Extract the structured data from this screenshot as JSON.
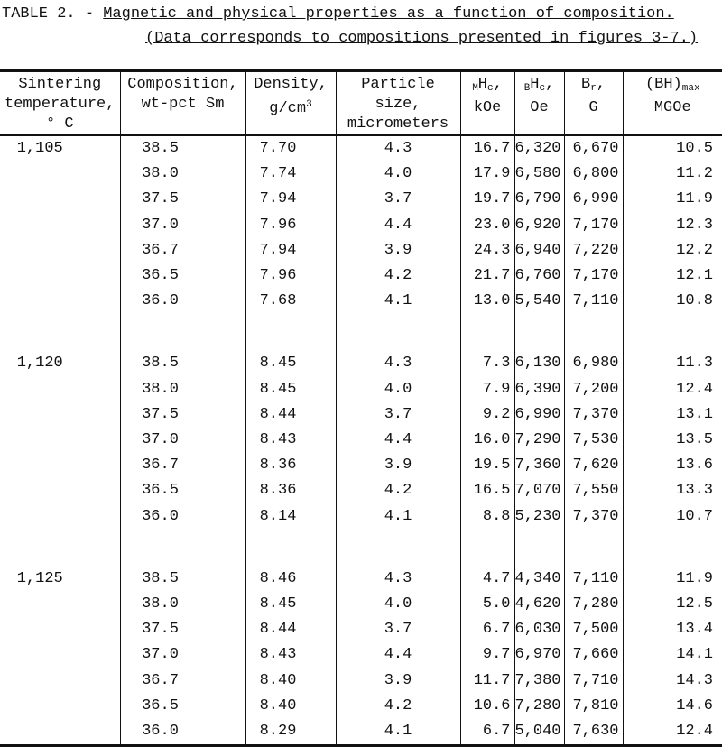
{
  "caption": {
    "label": "TABLE 2. -",
    "title": "Magnetic and physical properties as a function of composition.",
    "note": "(Data corresponds to compositions presented in figures 3-7.)"
  },
  "table": {
    "headers": [
      [
        [
          "Sintering"
        ],
        [
          "temperature,"
        ],
        [
          "° C"
        ]
      ],
      [
        [
          "Composition,"
        ],
        [
          "wt-pct Sm"
        ]
      ],
      [
        [
          "Density,"
        ],
        [
          "g/cm",
          {
            "t": "3",
            "s": "sup"
          }
        ]
      ],
      [
        [
          "Particle"
        ],
        [
          "size,"
        ],
        [
          "micrometers"
        ]
      ],
      [
        [
          {
            "t": "M",
            "s": "sub"
          },
          "H",
          {
            "t": "c",
            "s": "sub"
          },
          ","
        ],
        [
          "kOe"
        ]
      ],
      [
        [
          {
            "t": "B",
            "s": "sub"
          },
          "H",
          {
            "t": "c",
            "s": "sub"
          },
          ","
        ],
        [
          "Oe"
        ]
      ],
      [
        [
          "B",
          {
            "t": "r",
            "s": "sub"
          },
          ","
        ],
        [
          "G"
        ]
      ],
      [
        [
          "(BH)",
          {
            "t": "max",
            "s": "sub"
          }
        ],
        [
          "MGOe"
        ]
      ]
    ],
    "groups": [
      {
        "temperature": "1,105",
        "rows": [
          [
            "38.5",
            "7.70",
            "4.3",
            "16.7",
            "6,320",
            "6,670",
            "10.5"
          ],
          [
            "38.0",
            "7.74",
            "4.0",
            "17.9",
            "6,580",
            "6,800",
            "11.2"
          ],
          [
            "37.5",
            "7.94",
            "3.7",
            "19.7",
            "6,790",
            "6,990",
            "11.9"
          ],
          [
            "37.0",
            "7.96",
            "4.4",
            "23.0",
            "6,920",
            "7,170",
            "12.3"
          ],
          [
            "36.7",
            "7.94",
            "3.9",
            "24.3",
            "6,940",
            "7,220",
            "12.2"
          ],
          [
            "36.5",
            "7.96",
            "4.2",
            "21.7",
            "6,760",
            "7,170",
            "12.1"
          ],
          [
            "36.0",
            "7.68",
            "4.1",
            "13.0",
            "5,540",
            "7,110",
            "10.8"
          ]
        ]
      },
      {
        "temperature": "1,120",
        "rows": [
          [
            "38.5",
            "8.45",
            "4.3",
            "7.3",
            "6,130",
            "6,980",
            "11.3"
          ],
          [
            "38.0",
            "8.45",
            "4.0",
            "7.9",
            "6,390",
            "7,200",
            "12.4"
          ],
          [
            "37.5",
            "8.44",
            "3.7",
            "9.2",
            "6,990",
            "7,370",
            "13.1"
          ],
          [
            "37.0",
            "8.43",
            "4.4",
            "16.0",
            "7,290",
            "7,530",
            "13.5"
          ],
          [
            "36.7",
            "8.36",
            "3.9",
            "19.5",
            "7,360",
            "7,620",
            "13.6"
          ],
          [
            "36.5",
            "8.36",
            "4.2",
            "16.5",
            "7,070",
            "7,550",
            "13.3"
          ],
          [
            "36.0",
            "8.14",
            "4.1",
            "8.8",
            "5,230",
            "7,370",
            "10.7"
          ]
        ]
      },
      {
        "temperature": "1,125",
        "rows": [
          [
            "38.5",
            "8.46",
            "4.3",
            "4.7",
            "4,340",
            "7,110",
            "11.9"
          ],
          [
            "38.0",
            "8.45",
            "4.0",
            "5.0",
            "4,620",
            "7,280",
            "12.5"
          ],
          [
            "37.5",
            "8.44",
            "3.7",
            "6.7",
            "6,030",
            "7,500",
            "13.4"
          ],
          [
            "37.0",
            "8.43",
            "4.4",
            "9.7",
            "6,970",
            "7,660",
            "14.1"
          ],
          [
            "36.7",
            "8.40",
            "3.9",
            "11.7",
            "7,380",
            "7,710",
            "14.3"
          ],
          [
            "36.5",
            "8.40",
            "4.2",
            "10.6",
            "7,280",
            "7,810",
            "14.6"
          ],
          [
            "36.0",
            "8.29",
            "4.1",
            "6.7",
            "5,040",
            "7,630",
            "12.4"
          ]
        ]
      }
    ]
  }
}
